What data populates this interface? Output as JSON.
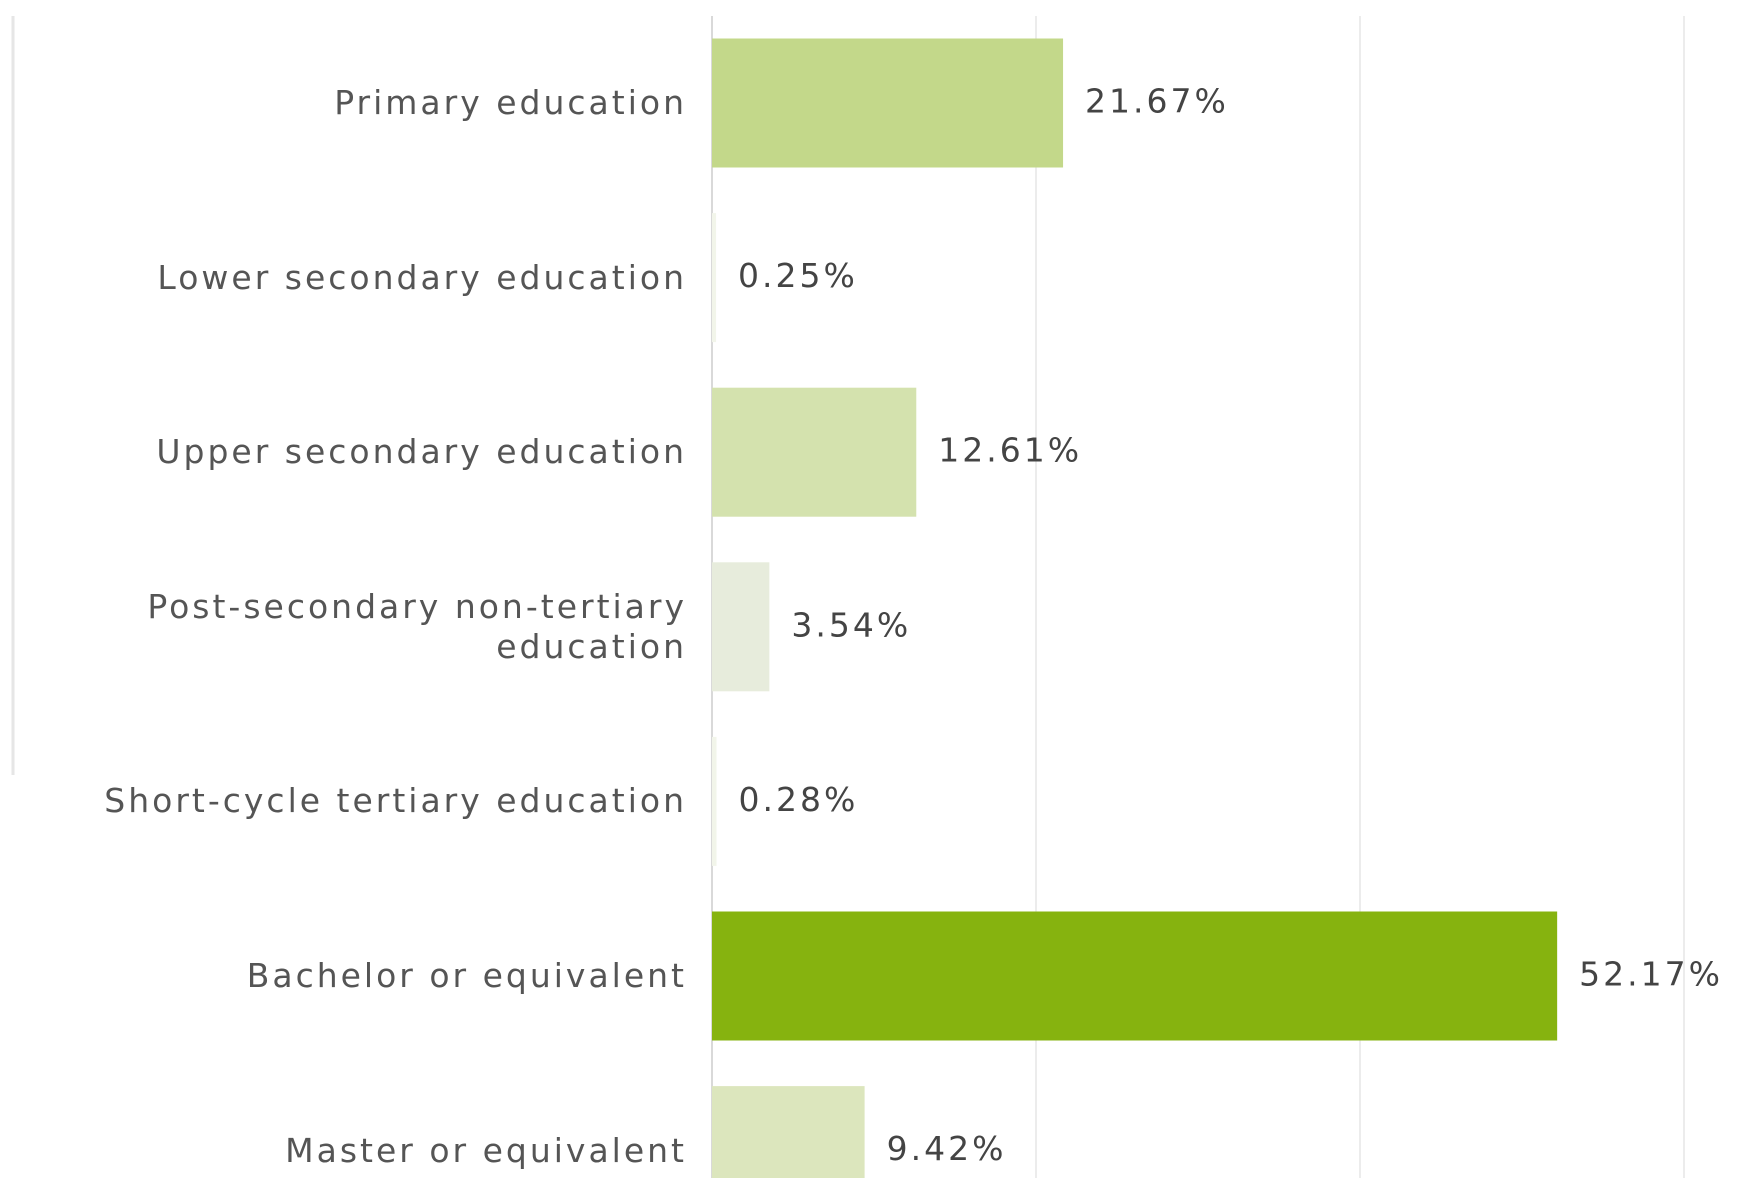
{
  "chart_data": {
    "type": "hbar",
    "categories": [
      "Primary education",
      "Lower secondary education",
      "Upper secondary education",
      "Post-secondary non-tertiary education",
      "Short-cycle tertiary education",
      "Bachelor or equivalent",
      "Master or equivalent"
    ],
    "values": [
      21.67,
      0.25,
      12.61,
      3.54,
      0.28,
      52.17,
      9.42
    ],
    "value_labels": [
      "21.67%",
      "0.25%",
      "12.61%",
      "3.54%",
      "0.28%",
      "52.17%",
      "9.42%"
    ],
    "colors": [
      "#c3d88a",
      "#f2f5ea",
      "#d4e2ae",
      "#e7ecdc",
      "#f2f5ea",
      "#86b30f",
      "#dce6bd"
    ],
    "xlim": [
      0,
      60
    ],
    "xticks": [
      0,
      20,
      40,
      60
    ],
    "grid": true
  }
}
